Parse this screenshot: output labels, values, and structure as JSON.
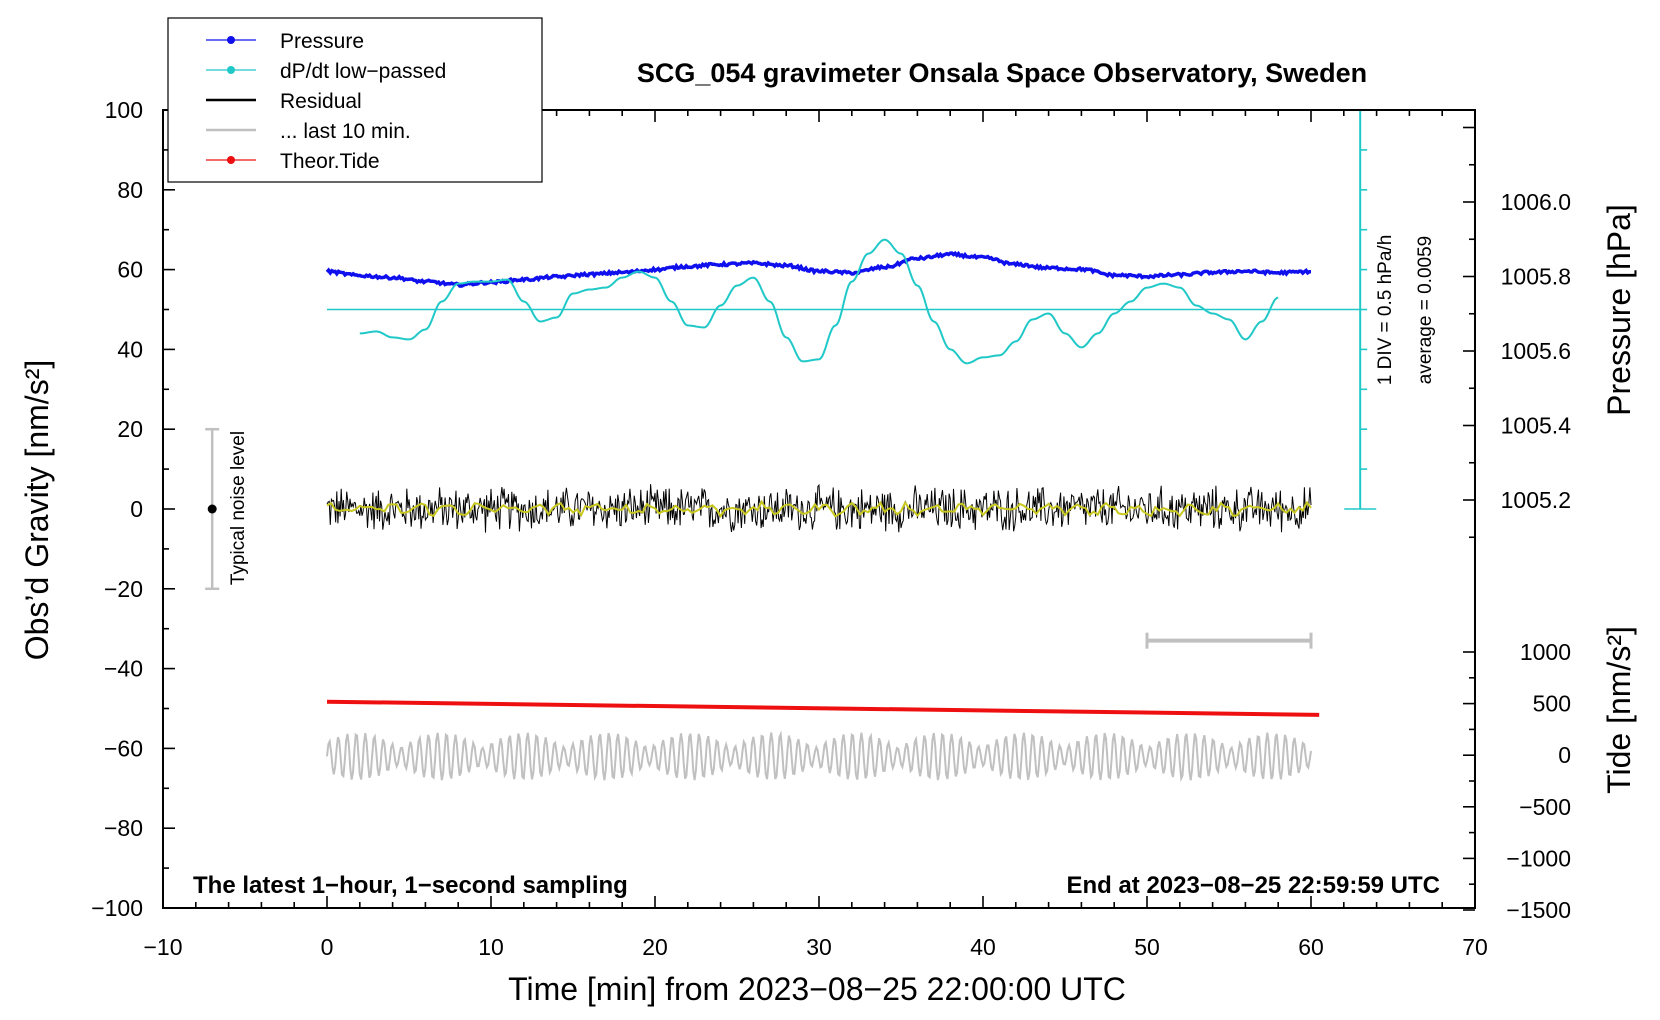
{
  "chart_data": {
    "type": "line",
    "title": "SCG_054 gravimeter Onsala Space Observatory, Sweden",
    "xlabel": "Time [min] from 2023−08−25 22:00:00 UTC",
    "ylabel_left": "Obs’d Gravity [nm/s²]",
    "ylabel_right_top": "Pressure [hPa]",
    "ylabel_right_bottom": "Tide [nm/s²]",
    "xlim": [
      -10,
      70
    ],
    "ylim_left": [
      -100,
      100
    ],
    "x_ticks": [
      "−10",
      "0",
      "10",
      "20",
      "30",
      "40",
      "50",
      "60",
      "70"
    ],
    "y_ticks_left": [
      "100",
      "80",
      "60",
      "40",
      "20",
      "0",
      "−20",
      "−40",
      "−60",
      "−80",
      "−100"
    ],
    "pressure_axis": {
      "ticks": [
        "1006.0",
        "1005.8",
        "1005.6",
        "1005.4",
        "1005.2"
      ],
      "values": [
        1006.0,
        1005.8,
        1005.6,
        1005.4,
        1005.2
      ]
    },
    "tide_axis": {
      "ticks": [
        "1000",
        "500",
        "0",
        "−500",
        "−1000",
        "−1500"
      ],
      "values": [
        1000,
        500,
        0,
        -500,
        -1000,
        -1500
      ]
    },
    "legend": [
      {
        "label": "Pressure",
        "color": "#1010ee",
        "marker": true
      },
      {
        "label": "dP/dt low−passed",
        "color": "#20c8c8",
        "marker": true
      },
      {
        "label": "Residual",
        "color": "#000000",
        "marker": false
      },
      {
        "label": "... last 10 min.",
        "color": "#c0c0c0",
        "marker": false
      },
      {
        "label": "Theor.Tide",
        "color": "#ee1010",
        "marker": true
      }
    ],
    "series": [
      {
        "name": "Pressure",
        "unit": "nm/s² plot units",
        "x": [
          0,
          2,
          4,
          6,
          8,
          10,
          12,
          14,
          16,
          18,
          20,
          22,
          24,
          26,
          28,
          30,
          32,
          34,
          36,
          38,
          40,
          42,
          44,
          46,
          48,
          50,
          52,
          54,
          56,
          58,
          60
        ],
        "values": [
          59.5,
          58.5,
          58,
          57,
          56.2,
          56.8,
          57.5,
          58.2,
          58.8,
          59.3,
          60,
          60.8,
          61.3,
          61.6,
          61,
          59.6,
          59.2,
          60.6,
          62.8,
          63.8,
          63,
          61.3,
          60.4,
          60.1,
          58.6,
          58.3,
          58.7,
          59.3,
          59.6,
          59.2,
          59.5
        ]
      },
      {
        "name": "dP/dt low−passed",
        "x": [
          2,
          3,
          4,
          5,
          6,
          7,
          8,
          9,
          10,
          11,
          12,
          13,
          14,
          15,
          16,
          17,
          18,
          19,
          20,
          21,
          22,
          23,
          24,
          25,
          26,
          27,
          28,
          29,
          30,
          31,
          32,
          33,
          34,
          35,
          36,
          37,
          38,
          39,
          40,
          41,
          42,
          43,
          44,
          45,
          46,
          47,
          48,
          49,
          50,
          51,
          52,
          53,
          54,
          55,
          56,
          57,
          58
        ],
        "values": [
          44,
          44.5,
          43,
          42.5,
          45,
          52,
          56.5,
          57,
          57,
          57.5,
          52,
          47,
          48,
          54,
          55,
          55.5,
          58,
          59.5,
          58,
          52,
          46,
          45.5,
          51,
          56,
          58,
          52,
          43,
          37,
          37.5,
          46,
          57,
          64,
          67.5,
          64,
          56,
          47,
          40,
          36.5,
          38,
          38.5,
          42,
          47.5,
          49,
          44,
          40.5,
          44,
          49,
          52,
          55.5,
          56.5,
          55.5,
          51,
          49,
          47.5,
          42.5,
          47,
          53
        ]
      },
      {
        "name": "dP/dt mean line",
        "x": [
          0,
          63
        ],
        "values": [
          50,
          50
        ]
      },
      {
        "name": "Residual",
        "x_range": [
          0,
          60
        ],
        "amplitude": 6.5,
        "center": 0
      },
      {
        "name": "Residual smoothed",
        "x_range": [
          0,
          60
        ],
        "amplitude": 1.5,
        "center": 0
      },
      {
        "name": "... last 10 min.",
        "x_range": [
          0,
          60
        ],
        "amplitude": 6,
        "center": -62
      },
      {
        "name": "Theor.Tide",
        "x": [
          0,
          60.5
        ],
        "values": [
          -48.3,
          -51.6
        ]
      }
    ],
    "annotations": {
      "noise_label": "Typical noise level",
      "noise_bar_x": -7,
      "noise_bar_range": [
        -20,
        20
      ],
      "div_scale": "1 DIV = 0.5 hPa/h",
      "average": "average = 0.0059",
      "ruler_x_range": [
        50,
        60
      ],
      "ruler_y": -33,
      "dpdt_scale_x": 63,
      "dpdt_scale_range": [
        0,
        100
      ],
      "footer_left": "The latest 1−hour, 1−second sampling",
      "footer_right": "End at 2023−08−25 22:59:59 UTC"
    }
  }
}
